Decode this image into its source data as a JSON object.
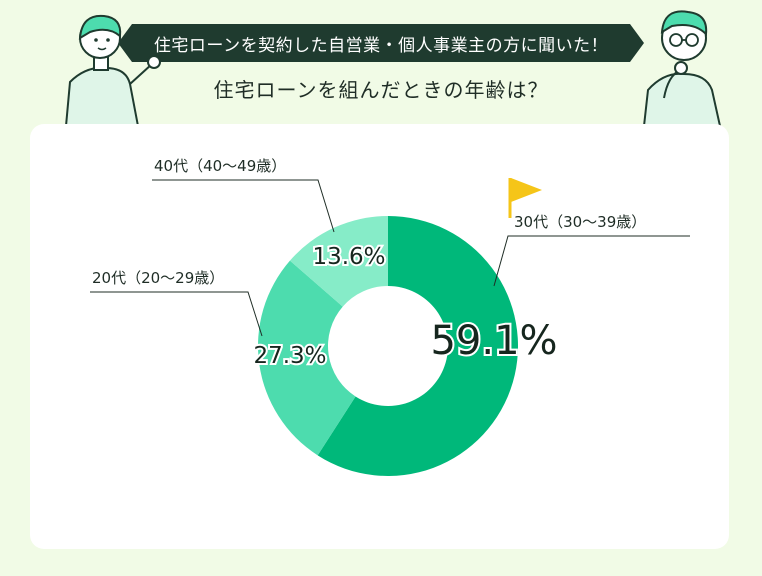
{
  "header": {
    "banner_text": "住宅ローンを契約した自営業・個人事業主の方に聞いた！",
    "question": "住宅ローンを組んだときの年齢は？"
  },
  "colors": {
    "background": "#f1fbe6",
    "banner": "#1f3b2f",
    "flag": "#f5c518",
    "slice_30s": "#00b87a",
    "slice_20s": "#4ddcae",
    "slice_40s": "#86ecc8"
  },
  "icons": {
    "left_person": "woman-pointing-icon",
    "right_person": "man-thinking-icon",
    "flag": "flag-icon"
  },
  "chart_data": {
    "type": "pie",
    "style": "donut",
    "categories": [
      "30代（30〜39歳）",
      "20代（20〜29歳）",
      "40代（40〜49歳）"
    ],
    "values": [
      59.1,
      27.3,
      13.6
    ],
    "value_labels": [
      "59.1%",
      "27.3%",
      "13.6%"
    ],
    "colors": [
      "#00b87a",
      "#4ddcae",
      "#86ecc8"
    ]
  }
}
